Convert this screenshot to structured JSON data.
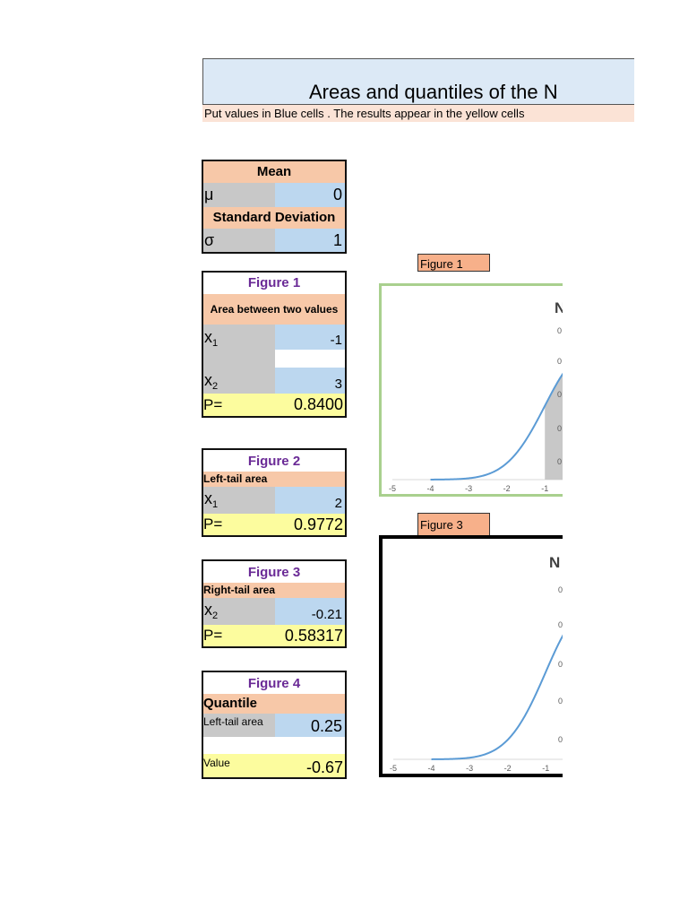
{
  "title": "Areas and quantiles of the N",
  "instructions": "Put values in Blue cells . The results appear in the yellow cells",
  "params": {
    "mean_header": "Mean",
    "mu_symbol": "μ",
    "mu_value": "0",
    "sd_header": "Standard Deviation",
    "sigma_symbol": "σ",
    "sigma_value": "1"
  },
  "fig1": {
    "title": "Figure 1",
    "header": "Area between two values",
    "x1_label": "x",
    "x1_sub": "1",
    "x1_value": "-1",
    "x2_label": "x",
    "x2_sub": "2",
    "x2_value": "3",
    "p_label": "P=",
    "p_value": "0.8400"
  },
  "fig2": {
    "title": "Figure 2",
    "header": "Left-tail area",
    "x1_label": "x",
    "x1_sub": "1",
    "x1_value": "2",
    "p_label": "P=",
    "p_value": "0.9772"
  },
  "fig3": {
    "title": "Figure 3",
    "header": "Right-tail area",
    "x2_label": "x",
    "x2_sub": "2",
    "x2_value": "-0.21",
    "p_label": "P=",
    "p_value": "0.58317"
  },
  "fig4": {
    "title": "Figure 4",
    "header": "Quantile",
    "area_label": "Left-tail area",
    "area_value": "0.25",
    "value_label": "Value",
    "value_value": "-0.67"
  },
  "chart_tags": {
    "chart1": "Figure 1",
    "chart3": "Figure 3"
  },
  "colors": {
    "curve": "#5b9bd5",
    "shade": "#c8c8c8",
    "chart1_border": "#a9d08e",
    "chart3_border": "#000000"
  },
  "chart_data": [
    {
      "type": "line",
      "title": "N",
      "x_ticks": [
        "-5",
        "-4",
        "-3",
        "-2",
        "-1"
      ],
      "y_tick_labels": [
        "0",
        "0",
        "0",
        "0",
        "0"
      ],
      "shaded_from": -1,
      "curve": "standard normal density",
      "xlim": [
        -5,
        -0.3
      ]
    },
    {
      "type": "line",
      "title": "N",
      "x_ticks": [
        "-5",
        "-4",
        "-3",
        "-2",
        "-1"
      ],
      "y_tick_labels": [
        "0",
        "0",
        "0",
        "0",
        "0"
      ],
      "curve": "standard normal density",
      "xlim": [
        -5,
        -0.3
      ]
    }
  ]
}
